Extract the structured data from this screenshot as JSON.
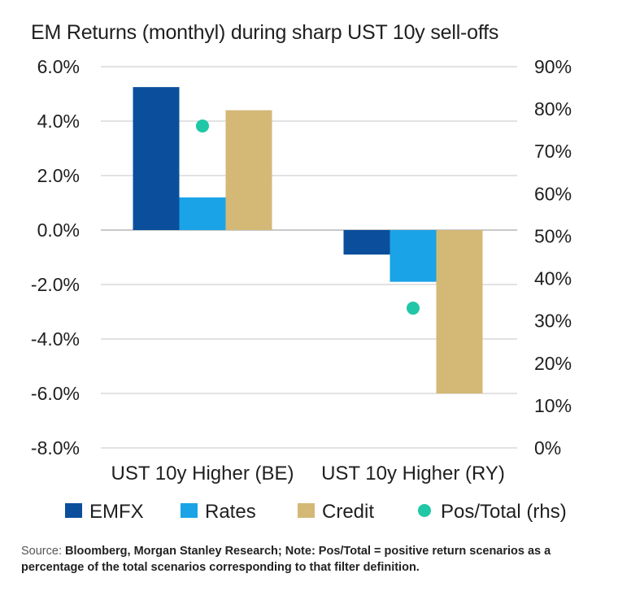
{
  "chart_data": {
    "type": "bar",
    "title": "EM Returns (monthyl) during sharp UST 10y sell-offs",
    "categories": [
      "UST 10y Higher (BE)",
      "UST 10y Higher (RY)"
    ],
    "series": [
      {
        "name": "EMFX",
        "values": [
          5.25,
          -0.9
        ],
        "color": "#0b4f9c"
      },
      {
        "name": "Rates",
        "values": [
          1.2,
          -1.9
        ],
        "color": "#1aa3e6"
      },
      {
        "name": "Credit",
        "values": [
          4.4,
          -6.0
        ],
        "color": "#d4b876"
      }
    ],
    "secondary_series": {
      "name": "Pos/Total (rhs)",
      "values": [
        76,
        33
      ],
      "color": "#1fc7a6",
      "axis": "right"
    },
    "ylim": [
      -8.0,
      6.0
    ],
    "y_ticks": [
      -8,
      -6,
      -4,
      -2,
      0,
      2,
      4,
      6
    ],
    "y_tick_labels": [
      "-8.0%",
      "-6.0%",
      "-4.0%",
      "-2.0%",
      "0.0%",
      "2.0%",
      "4.0%",
      "6.0%"
    ],
    "y2lim": [
      0,
      90
    ],
    "y2_ticks": [
      0,
      10,
      20,
      30,
      40,
      50,
      60,
      70,
      80,
      90
    ],
    "y2_tick_labels": [
      "0%",
      "10%",
      "20%",
      "30%",
      "40%",
      "50%",
      "60%",
      "70%",
      "80%",
      "90%"
    ],
    "legend": [
      "EMFX",
      "Rates",
      "Credit",
      "Pos/Total (rhs)"
    ],
    "legend_position": "bottom",
    "grid": true
  },
  "source": {
    "lead": "Source: ",
    "text": "Bloomberg, Morgan Stanley Research; Note: Pos/Total = positive return scenarios as a percentage of the total scenarios corresponding to that filter definition."
  }
}
